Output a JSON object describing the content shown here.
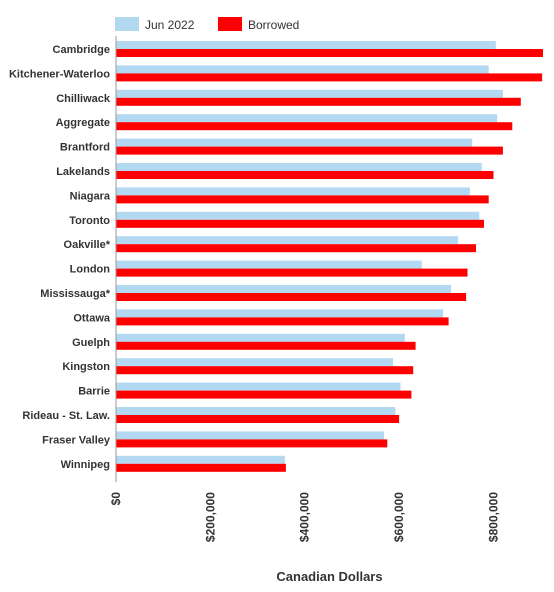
{
  "chart_data": {
    "type": "bar",
    "orientation": "horizontal",
    "categories": [
      "Cambridge",
      "Kitchener-Waterloo",
      "Chilliwack",
      "Aggregate",
      "Brantford",
      "Lakelands",
      "Niagara",
      "Toronto",
      "Oakville*",
      "London",
      "Mississauga*",
      "Ottawa",
      "Guelph",
      "Kingston",
      "Barrie",
      "Rideau - St. Law.",
      "Fraser Valley",
      "Winnipeg"
    ],
    "series": [
      {
        "name": "Jun 2022",
        "color": "#b3d9f2",
        "values": [
          805000,
          790000,
          820000,
          808000,
          755000,
          775000,
          750000,
          770000,
          725000,
          648000,
          710000,
          693000,
          612000,
          587000,
          603000,
          592000,
          568000,
          358000
        ]
      },
      {
        "name": "Borrowed",
        "color": "#ff0000",
        "values": [
          905000,
          903000,
          858000,
          840000,
          820000,
          800000,
          790000,
          780000,
          763000,
          745000,
          742000,
          705000,
          635000,
          630000,
          626000,
          600000,
          575000,
          360000
        ]
      }
    ],
    "xlabel": "Canadian Dollars",
    "ylabel": "",
    "xlim": [
      0,
      905000
    ],
    "ticks": [
      0,
      200000,
      400000,
      600000,
      800000
    ],
    "tick_labels": [
      "$0",
      "$200,000",
      "$400,000",
      "$600,000",
      "$800,000"
    ],
    "grid": false,
    "legend_position": "top-left"
  }
}
